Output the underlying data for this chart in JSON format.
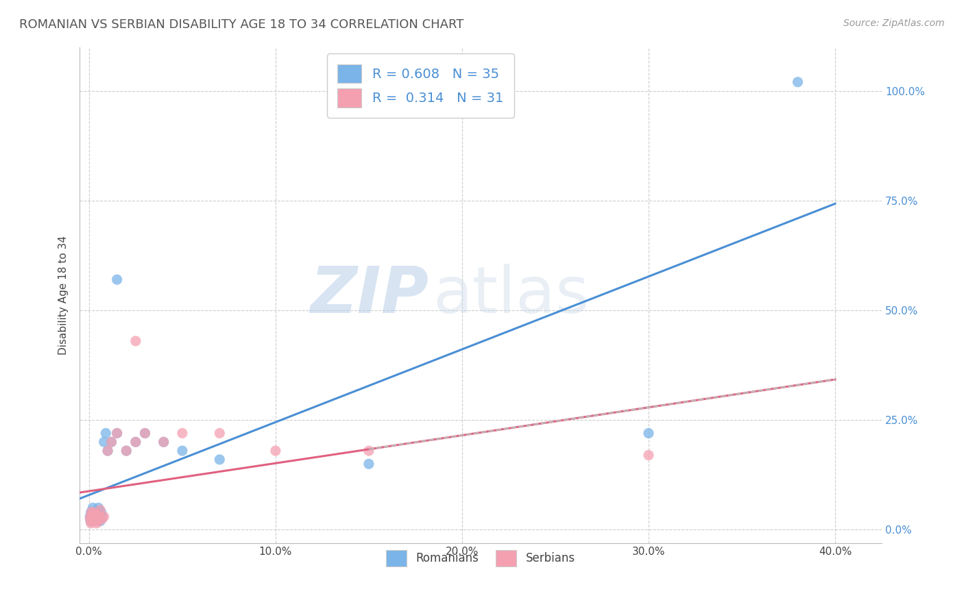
{
  "title": "ROMANIAN VS SERBIAN DISABILITY AGE 18 TO 34 CORRELATION CHART",
  "source_text": "Source: ZipAtlas.com",
  "xlabel_vals": [
    0.0,
    10.0,
    20.0,
    30.0,
    40.0
  ],
  "ylabel_vals": [
    0.0,
    25.0,
    50.0,
    75.0,
    100.0
  ],
  "xlim": [
    -0.5,
    42.5
  ],
  "ylim": [
    -3.0,
    110.0
  ],
  "ylabel": "Disability Age 18 to 34",
  "romanian_color": "#7ab4e8",
  "serbian_color": "#f4a0b0",
  "romanian_R": 0.608,
  "romanian_N": 35,
  "serbian_R": 0.314,
  "serbian_N": 31,
  "legend_label1": "Romanians",
  "legend_label2": "Serbians",
  "watermark_zip": "ZIP",
  "watermark_atlas": "atlas",
  "grid_color": "#cccccc",
  "background_color": "#ffffff",
  "ro_line_color": "#4a8fd4",
  "se_line_color": "#e06080",
  "dash_line_color": "#bbbbbb",
  "ytick_color": "#4a8fd4",
  "title_color": "#555555",
  "source_color": "#999999",
  "ro_scatter_x": [
    0.05,
    0.08,
    0.1,
    0.12,
    0.15,
    0.18,
    0.2,
    0.22,
    0.25,
    0.28,
    0.3,
    0.35,
    0.38,
    0.4,
    0.45,
    0.5,
    0.55,
    0.6,
    0.65,
    0.7,
    0.8,
    0.9,
    1.0,
    1.2,
    1.5,
    1.5,
    2.0,
    2.5,
    3.0,
    4.0,
    5.0,
    7.0,
    15.0,
    30.0,
    38.0
  ],
  "ro_scatter_y": [
    3.0,
    2.0,
    4.0,
    2.5,
    3.5,
    2.0,
    5.0,
    3.0,
    4.0,
    2.5,
    3.0,
    4.0,
    3.5,
    2.0,
    3.0,
    5.0,
    3.5,
    2.0,
    4.0,
    3.0,
    20.0,
    22.0,
    18.0,
    20.0,
    22.0,
    57.0,
    18.0,
    20.0,
    22.0,
    20.0,
    18.0,
    16.0,
    15.0,
    22.0,
    102.0
  ],
  "se_scatter_x": [
    0.05,
    0.08,
    0.1,
    0.12,
    0.15,
    0.18,
    0.2,
    0.22,
    0.25,
    0.3,
    0.35,
    0.4,
    0.45,
    0.5,
    0.55,
    0.6,
    0.7,
    0.8,
    1.0,
    1.2,
    1.5,
    2.0,
    2.5,
    3.0,
    4.0,
    2.5,
    5.0,
    7.0,
    10.0,
    30.0,
    15.0
  ],
  "se_scatter_y": [
    2.5,
    3.0,
    1.5,
    4.0,
    2.0,
    3.5,
    2.0,
    4.0,
    2.5,
    3.0,
    2.5,
    1.5,
    3.5,
    2.0,
    3.0,
    4.5,
    2.5,
    3.0,
    18.0,
    20.0,
    22.0,
    18.0,
    20.0,
    22.0,
    20.0,
    43.0,
    22.0,
    22.0,
    18.0,
    17.0,
    18.0
  ]
}
